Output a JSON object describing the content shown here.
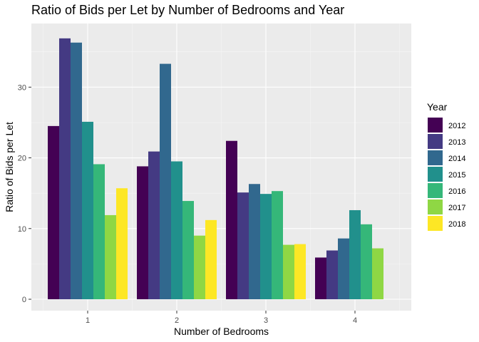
{
  "chart_data": {
    "type": "bar",
    "title": "Ratio of Bids per Let by Number of Bedrooms and Year",
    "xlabel": "Number of Bedrooms",
    "ylabel": "Ratio of Bids per Let",
    "categories": [
      "1",
      "2",
      "3",
      "4"
    ],
    "ylim": [
      0,
      39
    ],
    "yticks": [
      0,
      10,
      20,
      30
    ],
    "grid": true,
    "legend": {
      "title": "Year",
      "position": "right"
    },
    "series": [
      {
        "name": "2012",
        "color": "#440154",
        "values": [
          24.5,
          18.8,
          22.4,
          5.9
        ]
      },
      {
        "name": "2013",
        "color": "#443A83",
        "values": [
          36.9,
          20.9,
          15.1,
          6.9
        ]
      },
      {
        "name": "2014",
        "color": "#31688E",
        "values": [
          36.3,
          33.3,
          16.3,
          8.6
        ]
      },
      {
        "name": "2015",
        "color": "#21908C",
        "values": [
          25.1,
          19.5,
          14.9,
          12.6
        ]
      },
      {
        "name": "2016",
        "color": "#35B779",
        "values": [
          19.1,
          13.9,
          15.3,
          10.6
        ]
      },
      {
        "name": "2017",
        "color": "#8FD744",
        "values": [
          11.9,
          9.0,
          7.7,
          7.2
        ]
      },
      {
        "name": "2018",
        "color": "#FDE725",
        "values": [
          15.7,
          11.2,
          7.8,
          null
        ]
      }
    ]
  }
}
